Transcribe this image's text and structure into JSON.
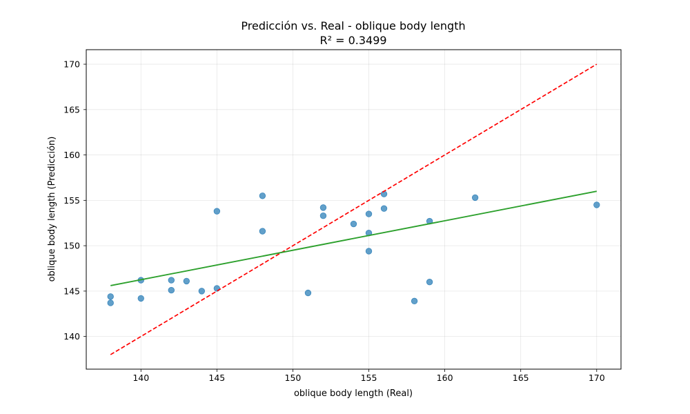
{
  "chart_data": {
    "type": "scatter",
    "title": "Predicción vs. Real - oblique body length",
    "subtitle": "R² = 0.3499",
    "xlabel": "oblique body length (Real)",
    "ylabel": "oblique body length (Predicción)",
    "xlim": [
      136.4,
      171.6
    ],
    "ylim": [
      136.4,
      171.6
    ],
    "xticks": [
      140,
      145,
      150,
      155,
      160,
      165,
      170
    ],
    "yticks": [
      140,
      145,
      150,
      155,
      160,
      165,
      170
    ],
    "grid": true,
    "points": {
      "color": "#1f77b4",
      "x": [
        138,
        138,
        140,
        140,
        142,
        142,
        143,
        144,
        145,
        145,
        148,
        148,
        151,
        152,
        152,
        154,
        155,
        155,
        155,
        156,
        156,
        158,
        159,
        159,
        162,
        170
      ],
      "y": [
        144.4,
        143.7,
        146.2,
        144.2,
        146.2,
        145.1,
        146.1,
        145.0,
        145.3,
        153.8,
        155.5,
        151.6,
        144.8,
        154.2,
        153.3,
        152.4,
        153.5,
        151.4,
        149.4,
        155.7,
        154.1,
        143.9,
        146.0,
        152.7,
        155.3,
        154.5
      ]
    },
    "identity_line": {
      "color": "#ff0000",
      "style": "dashed",
      "x": [
        138,
        170
      ],
      "y": [
        138,
        170
      ]
    },
    "fit_line": {
      "color": "#2ca02c",
      "style": "solid",
      "x": [
        138,
        170
      ],
      "y": [
        145.6,
        156.0
      ]
    }
  }
}
